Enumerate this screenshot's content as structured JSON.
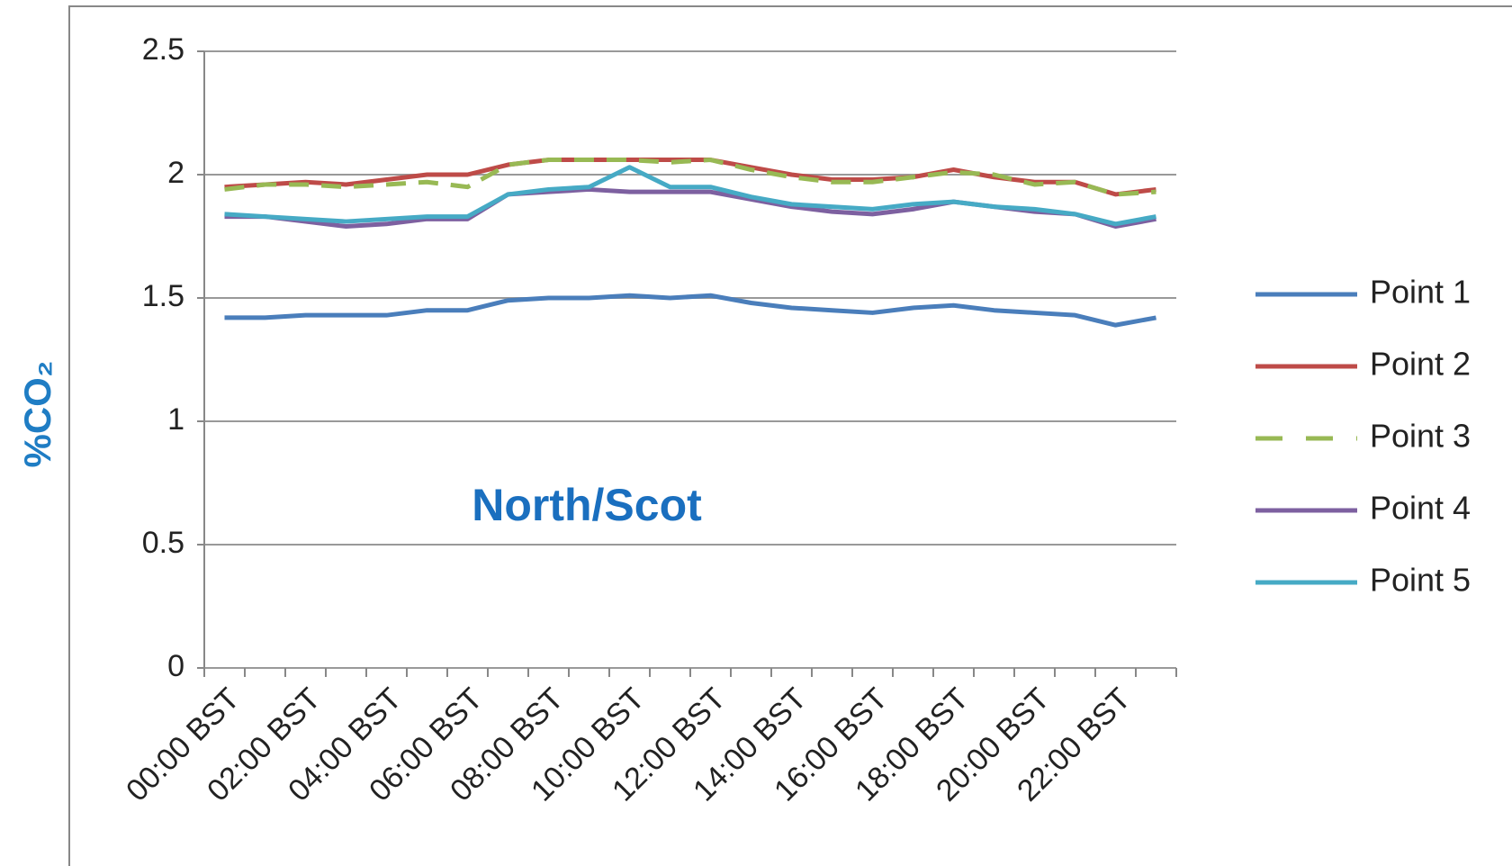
{
  "chart_data": {
    "type": "line",
    "y_label": "%CO₂",
    "annotation": "North/Scot",
    "categories": [
      "00:00 BST",
      null,
      "02:00 BST",
      null,
      "04:00 BST",
      null,
      "06:00 BST",
      null,
      "08:00 BST",
      null,
      "10:00 BST",
      null,
      "12:00 BST",
      null,
      "14:00 BST",
      null,
      "16:00 BST",
      null,
      "18:00 BST",
      null,
      "20:00 BST",
      null,
      "22:00 BST",
      null
    ],
    "ylim": [
      0,
      2.5
    ],
    "yticks": [
      0,
      0.5,
      1,
      1.5,
      2,
      2.5
    ],
    "grid": true,
    "legend": "right",
    "series": [
      {
        "name": "Point 1",
        "color": "#4a7ebb",
        "dashed": false,
        "values": [
          1.42,
          1.42,
          1.43,
          1.43,
          1.43,
          1.45,
          1.45,
          1.49,
          1.5,
          1.5,
          1.51,
          1.5,
          1.51,
          1.48,
          1.46,
          1.45,
          1.44,
          1.46,
          1.47,
          1.45,
          1.44,
          1.43,
          1.39,
          1.42
        ]
      },
      {
        "name": "Point 2",
        "color": "#be4b48",
        "dashed": false,
        "values": [
          1.95,
          1.96,
          1.97,
          1.96,
          1.98,
          2.0,
          2.0,
          2.04,
          2.06,
          2.06,
          2.06,
          2.06,
          2.06,
          2.03,
          2.0,
          1.98,
          1.98,
          1.99,
          2.02,
          1.99,
          1.97,
          1.97,
          1.92,
          1.94
        ]
      },
      {
        "name": "Point 3",
        "color": "#98b954",
        "dashed": true,
        "values": [
          1.94,
          1.96,
          1.96,
          1.95,
          1.96,
          1.97,
          1.95,
          2.04,
          2.06,
          2.06,
          2.06,
          2.05,
          2.06,
          2.02,
          1.99,
          1.97,
          1.97,
          1.99,
          2.01,
          2.0,
          1.96,
          1.97,
          1.92,
          1.93
        ]
      },
      {
        "name": "Point 4",
        "color": "#7d60a0",
        "dashed": false,
        "values": [
          1.83,
          1.83,
          1.81,
          1.79,
          1.8,
          1.82,
          1.82,
          1.92,
          1.93,
          1.94,
          1.93,
          1.93,
          1.93,
          1.9,
          1.87,
          1.85,
          1.84,
          1.86,
          1.89,
          1.87,
          1.85,
          1.84,
          1.79,
          1.82
        ]
      },
      {
        "name": "Point 5",
        "color": "#46aac5",
        "dashed": false,
        "values": [
          1.84,
          1.83,
          1.82,
          1.81,
          1.82,
          1.83,
          1.83,
          1.92,
          1.94,
          1.95,
          2.03,
          1.95,
          1.95,
          1.91,
          1.88,
          1.87,
          1.86,
          1.88,
          1.89,
          1.87,
          1.86,
          1.84,
          1.8,
          1.83
        ]
      }
    ]
  }
}
